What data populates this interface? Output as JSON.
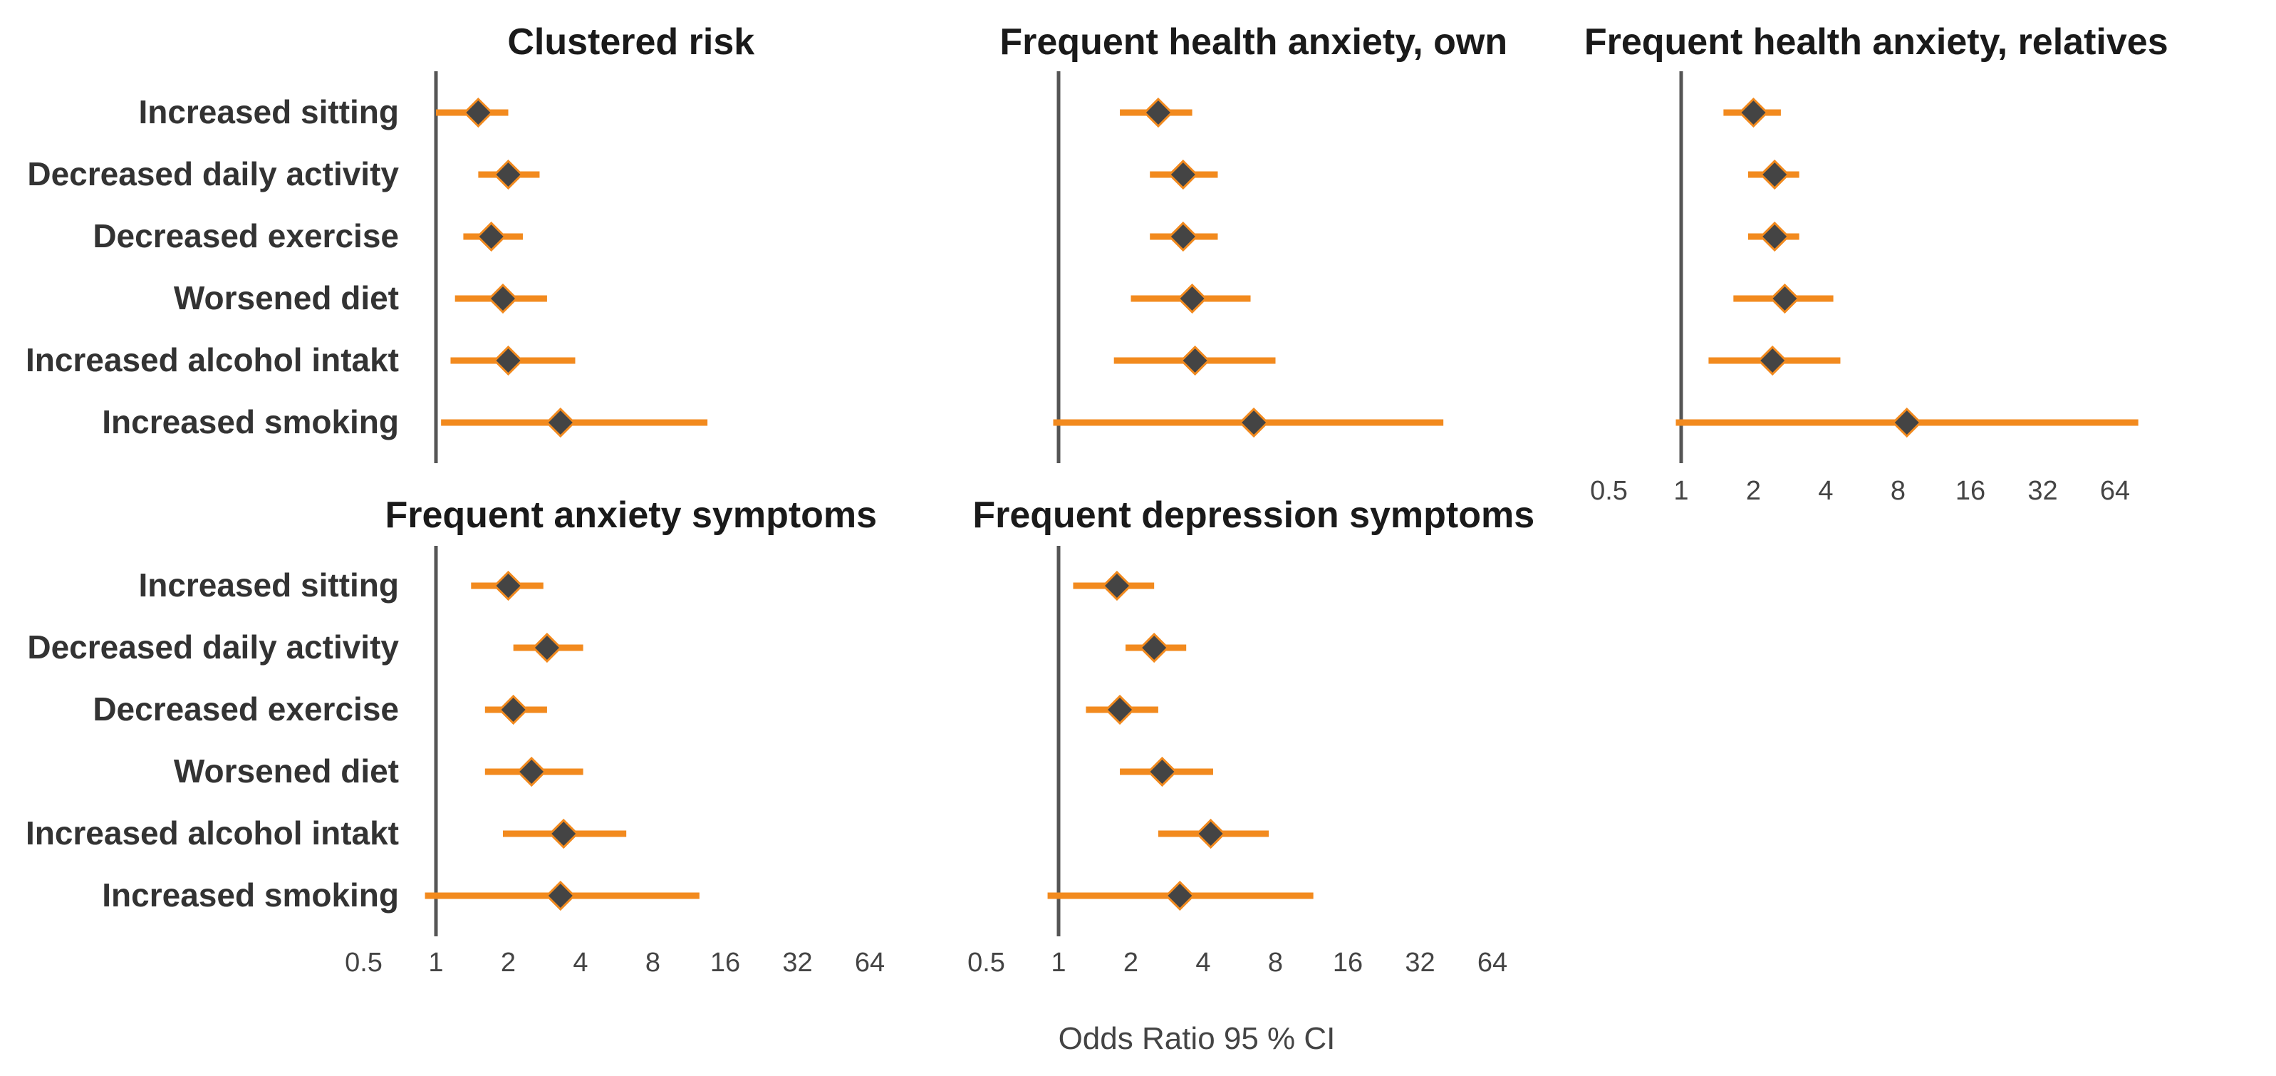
{
  "chart_data": {
    "type": "forest",
    "axis": {
      "label": "Odds Ratio 95 % CI",
      "scale": "log2",
      "range": [
        0.5,
        64
      ],
      "ticks": [
        0.5,
        1,
        2,
        4,
        8,
        16,
        32,
        64
      ],
      "tick_labels": [
        "0.5",
        "1",
        "2",
        "4",
        "8",
        "16",
        "32",
        "64"
      ],
      "reference_line": 1
    },
    "categories": [
      "Increased sitting",
      "Decreased daily activity",
      "Decreased exercise",
      "Worsened diet",
      "Increased alcohol intakt",
      "Increased smoking"
    ],
    "colors": {
      "ci": "#f28a1e",
      "point": "#444444",
      "point_stroke": "#f28a1e",
      "ref_line": "#555555"
    },
    "panels": [
      {
        "title": "Clustered risk",
        "or": [
          1.5,
          2.0,
          1.7,
          1.9,
          2.0,
          3.3
        ],
        "lo": [
          1.0,
          1.5,
          1.3,
          1.2,
          1.15,
          1.05
        ],
        "hi": [
          2.0,
          2.7,
          2.3,
          2.9,
          3.8,
          13.5
        ]
      },
      {
        "title": "Frequent health anxiety, own",
        "or": [
          2.6,
          3.3,
          3.3,
          3.6,
          3.7,
          6.5
        ],
        "lo": [
          1.8,
          2.4,
          2.4,
          2.0,
          1.7,
          0.95
        ],
        "hi": [
          3.6,
          4.6,
          4.6,
          6.3,
          8.0,
          40.0
        ]
      },
      {
        "title": "Frequent health anxiety, relatives",
        "or": [
          2.0,
          2.45,
          2.45,
          2.7,
          2.4,
          8.7
        ],
        "lo": [
          1.5,
          1.9,
          1.9,
          1.65,
          1.3,
          0.95
        ],
        "hi": [
          2.6,
          3.1,
          3.1,
          4.3,
          4.6,
          80.0
        ]
      },
      {
        "title": "Frequent anxiety symptoms",
        "or": [
          2.0,
          2.9,
          2.1,
          2.5,
          3.4,
          3.3
        ],
        "lo": [
          1.4,
          2.1,
          1.6,
          1.6,
          1.9,
          0.9
        ],
        "hi": [
          2.8,
          4.1,
          2.9,
          4.1,
          6.2,
          12.5
        ]
      },
      {
        "title": "Frequent depression symptoms",
        "or": [
          1.75,
          2.5,
          1.8,
          2.7,
          4.3,
          3.2
        ],
        "lo": [
          1.15,
          1.9,
          1.3,
          1.8,
          2.6,
          0.9
        ],
        "hi": [
          2.5,
          3.4,
          2.6,
          4.4,
          7.5,
          11.5
        ]
      }
    ]
  }
}
